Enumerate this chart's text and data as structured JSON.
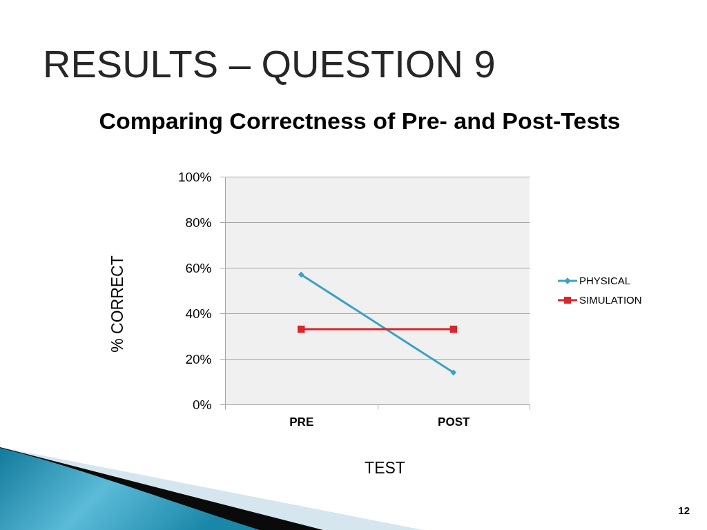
{
  "chart_data": {
    "type": "line",
    "title": "RESULTS – QUESTION 9",
    "subtitle": "Comparing Correctness of Pre- and Post-Tests",
    "xlabel": "TEST",
    "ylabel": "% CORRECT",
    "categories": [
      "PRE",
      "POST"
    ],
    "series": [
      {
        "name": "PHYSICAL",
        "color": "#3ca1c3",
        "marker": "diamond",
        "values": [
          57,
          14
        ]
      },
      {
        "name": "SIMULATION",
        "color": "#d7262c",
        "marker": "square",
        "values": [
          33,
          33
        ]
      }
    ],
    "ylim": [
      0,
      100
    ],
    "yticks": [
      {
        "value": 0,
        "label": "0%"
      },
      {
        "value": 20,
        "label": "20%"
      },
      {
        "value": 40,
        "label": "40%"
      },
      {
        "value": 60,
        "label": "60%"
      },
      {
        "value": 80,
        "label": "80%"
      },
      {
        "value": 100,
        "label": "100%"
      }
    ],
    "grid": "y",
    "legend": "right",
    "annotations": [
      "12"
    ]
  }
}
